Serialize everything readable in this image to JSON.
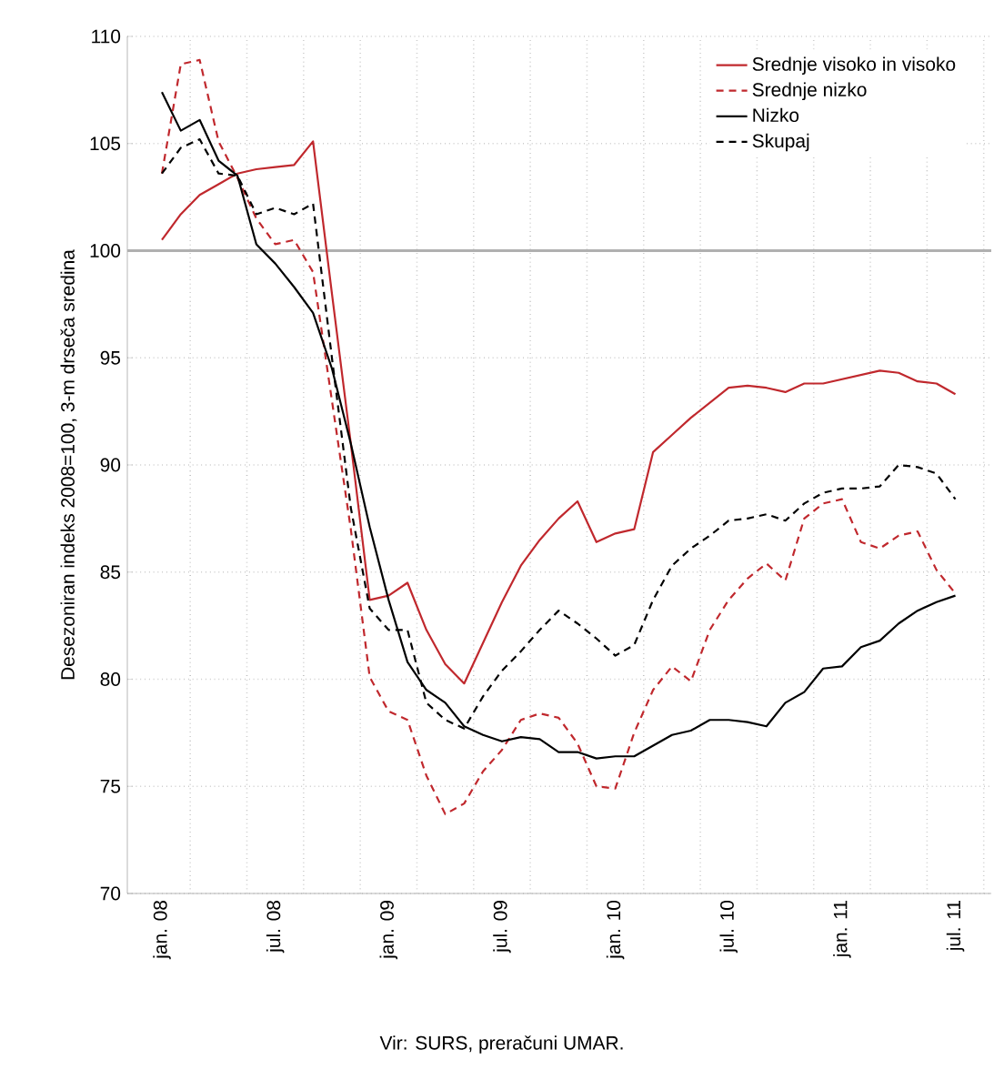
{
  "chart_data": {
    "type": "line",
    "ylabel": "Desezoniran indeks 2008=100, 3-m drseča sredina",
    "categories": [
      "jan. 08",
      null,
      null,
      null,
      null,
      null,
      "jul. 08",
      null,
      null,
      null,
      null,
      null,
      "jan. 09",
      null,
      null,
      null,
      null,
      null,
      "jul. 09",
      null,
      null,
      null,
      null,
      null,
      "jan. 10",
      null,
      null,
      null,
      null,
      null,
      "jul. 10",
      null,
      null,
      null,
      null,
      null,
      "jan. 11",
      null,
      null,
      null,
      null,
      null,
      "jul. 11"
    ],
    "series": [
      {
        "name": "Srednje visoko in visoko",
        "color": "#c0282d",
        "line_style": "solid",
        "values": [
          100.5,
          101.7,
          102.6,
          103.1,
          103.6,
          103.8,
          103.9,
          104.0,
          105.1,
          98.0,
          91.0,
          83.7,
          83.9,
          84.5,
          82.3,
          80.7,
          79.8,
          81.7,
          83.6,
          85.3,
          86.5,
          87.5,
          88.3,
          86.4,
          86.8,
          87.0,
          90.6,
          91.4,
          92.2,
          92.9,
          93.6,
          93.7,
          93.6,
          93.4,
          93.8,
          93.8,
          94.0,
          94.2,
          94.4,
          94.3,
          93.9,
          93.8,
          93.3
        ]
      },
      {
        "name": "Srednje nizko",
        "color": "#c0282d",
        "line_style": "dashed",
        "values": [
          103.6,
          108.7,
          108.9,
          105.1,
          103.4,
          101.5,
          100.3,
          100.5,
          99.0,
          93.0,
          87.0,
          80.1,
          78.5,
          78.1,
          75.5,
          73.7,
          74.2,
          75.7,
          76.7,
          78.1,
          78.4,
          78.2,
          77.0,
          75.0,
          74.9,
          77.5,
          79.5,
          80.6,
          79.9,
          82.3,
          83.7,
          84.7,
          85.4,
          84.6,
          87.5,
          88.2,
          88.4,
          86.4,
          86.1,
          86.7,
          86.9,
          85.1,
          84.0
        ]
      },
      {
        "name": "Nizko",
        "color": "#000000",
        "line_style": "solid",
        "values": [
          107.4,
          105.6,
          106.1,
          104.2,
          103.5,
          100.3,
          99.4,
          98.3,
          97.1,
          94.5,
          91.0,
          87.1,
          83.7,
          80.8,
          79.5,
          78.9,
          77.8,
          77.4,
          77.1,
          77.3,
          77.2,
          76.6,
          76.6,
          76.3,
          76.4,
          76.4,
          76.9,
          77.4,
          77.6,
          78.1,
          78.1,
          78.0,
          77.8,
          78.9,
          79.4,
          80.5,
          80.6,
          81.5,
          81.8,
          82.6,
          83.2,
          83.6,
          83.9
        ]
      },
      {
        "name": "Skupaj",
        "color": "#000000",
        "line_style": "dashed",
        "values": [
          103.6,
          104.8,
          105.2,
          103.6,
          103.5,
          101.7,
          102.0,
          101.7,
          102.2,
          95.0,
          88.0,
          83.3,
          82.3,
          82.3,
          78.9,
          78.1,
          77.7,
          79.2,
          80.4,
          81.3,
          82.3,
          83.2,
          82.6,
          81.9,
          81.1,
          81.6,
          83.7,
          85.3,
          86.1,
          86.7,
          87.4,
          87.5,
          87.7,
          87.4,
          88.2,
          88.7,
          88.9,
          88.9,
          89.0,
          90.0,
          89.9,
          89.6,
          88.4
        ]
      }
    ],
    "ylim": [
      70,
      110
    ],
    "yticks": [
      70,
      75,
      80,
      85,
      90,
      95,
      100,
      105,
      110
    ],
    "grid": true,
    "legend": "top right",
    "ref_lines": [
      {
        "axis": "y",
        "value": 100,
        "color": "#b0b0b0"
      }
    ],
    "annotations": [
      "Vir: SURS, preračuni UMAR."
    ]
  }
}
